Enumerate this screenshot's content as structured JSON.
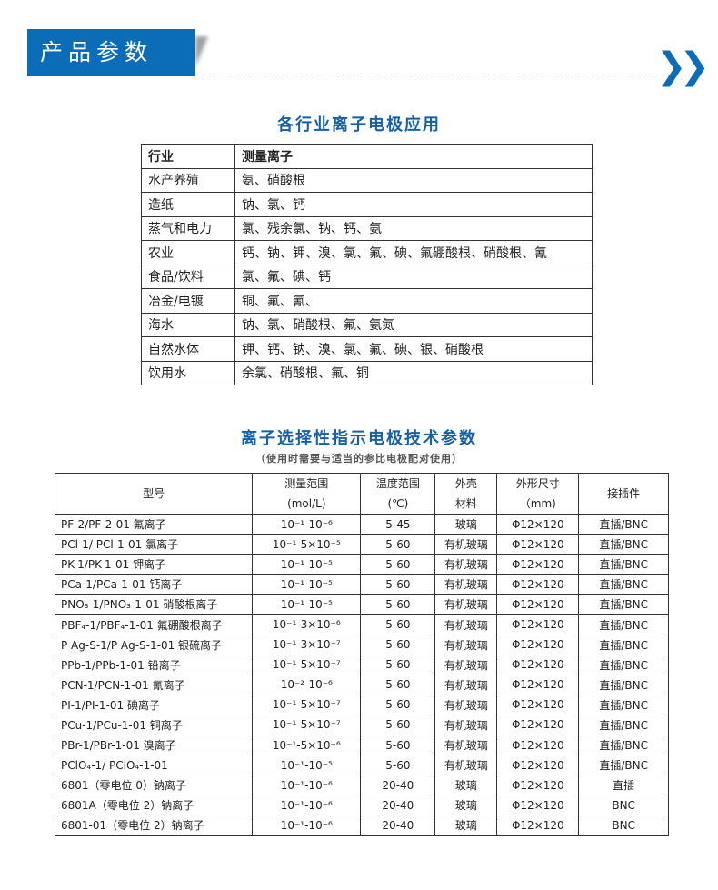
{
  "header": {
    "title": "产品参数",
    "chevron_icon": "double-chevron-right-icon",
    "accent": "#0b6db8"
  },
  "industry": {
    "title": "各行业离子电极应用",
    "headers": [
      "行业",
      "测量离子"
    ],
    "rows": [
      [
        "水产养殖",
        "氨、硝酸根"
      ],
      [
        "造纸",
        "钠、氯、钙"
      ],
      [
        "蒸气和电力",
        "氯、残余氯、钠、钙、氨"
      ],
      [
        "农业",
        "钙、钠、钾、溴、氯、氟、碘、氟硼酸根、硝酸根、氰"
      ],
      [
        "食品/饮料",
        "氯、氟、碘、钙"
      ],
      [
        "冶金/电镀",
        "铜、氟、氰、"
      ],
      [
        "海水",
        "钠、氯、硝酸根、氟、氨氮"
      ],
      [
        "自然水体",
        "钾、钙、钠、溴、氯、氟、碘、银、硝酸根"
      ],
      [
        "饮用水",
        "余氯、硝酸根、氟、铜"
      ]
    ]
  },
  "specs": {
    "title": "离子选择性指示电极技术参数",
    "subtitle": "（使用时需要与适当的参比电极配对使用）",
    "headers": [
      [
        "型号"
      ],
      [
        "测量范围",
        "(mol/L)"
      ],
      [
        "温度范围",
        "(℃)"
      ],
      [
        "外壳",
        "材料"
      ],
      [
        "外形尺寸",
        "（mm)"
      ],
      [
        "接插件"
      ]
    ],
    "rows": [
      [
        "PF-2/PF-2-01 氟离子",
        "10⁻¹-10⁻⁶",
        "5-45",
        "玻璃",
        "Φ12×120",
        "直插/BNC"
      ],
      [
        "PCl-1/ PCl-1-01 氯离子",
        "10⁻¹-5×10⁻⁵",
        "5-60",
        "有机玻璃",
        "Φ12×120",
        "直插/BNC"
      ],
      [
        "PK-1/PK-1-01 钾离子",
        "10⁻¹-10⁻⁵",
        "5-60",
        "有机玻璃",
        "Φ12×120",
        "直插/BNC"
      ],
      [
        "PCa-1/PCa-1-01 钙离子",
        "10⁻¹-10⁻⁵",
        "5-60",
        "有机玻璃",
        "Φ12×120",
        "直插/BNC"
      ],
      [
        "PNO₃-1/PNO₃-1-01 硝酸根离子",
        "10⁻¹-10⁻⁵",
        "5-60",
        "有机玻璃",
        "Φ12×120",
        "直插/BNC"
      ],
      [
        "PBF₄-1/PBF₄-1-01 氟硼酸根离子",
        "10⁻¹-3×10⁻⁶",
        "5-60",
        "有机玻璃",
        "Φ12×120",
        "直插/BNC"
      ],
      [
        "P Ag-S-1/P Ag-S-1-01 银硫离子",
        "10⁻¹-3×10⁻⁷",
        "5-60",
        "有机玻璃",
        "Φ12×120",
        "直插/BNC"
      ],
      [
        "PPb-1/PPb-1-01 铅离子",
        "10⁻¹-5×10⁻⁷",
        "5-60",
        "有机玻璃",
        "Φ12×120",
        "直插/BNC"
      ],
      [
        "PCN-1/PCN-1-01 氰离子",
        "10⁻²-10⁻⁶",
        "5-60",
        "有机玻璃",
        "Φ12×120",
        "直插/BNC"
      ],
      [
        "PI-1/PI-1-01 碘离子",
        "10⁻¹-5×10⁻⁷",
        "5-60",
        "有机玻璃",
        "Φ12×120",
        "直插/BNC"
      ],
      [
        "PCu-1/PCu-1-01 铜离子",
        "10⁻¹-5×10⁻⁷",
        "5-60",
        "有机玻璃",
        "Φ12×120",
        "直插/BNC"
      ],
      [
        "PBr-1/PBr-1-01 溴离子",
        "10⁻¹-5×10⁻⁶",
        "5-60",
        "有机玻璃",
        "Φ12×120",
        "直插/BNC"
      ],
      [
        "PClO₄-1/ PClO₄-1-01",
        "10⁻¹-10⁻⁵",
        "5-60",
        "有机玻璃",
        "Φ12×120",
        "直插/BNC"
      ],
      [
        "6801（零电位 0）钠离子",
        "10⁻¹-10⁻⁶",
        "20-40",
        "玻璃",
        "Φ12×120",
        "直插"
      ],
      [
        "6801A（零电位 2）钠离子",
        "10⁻¹-10⁻⁶",
        "20-40",
        "玻璃",
        "Φ12×120",
        "BNC"
      ],
      [
        "6801-01（零电位 2）钠离子",
        "10⁻¹-10⁻⁶",
        "20-40",
        "玻璃",
        "Φ12×120",
        "BNC"
      ]
    ]
  }
}
